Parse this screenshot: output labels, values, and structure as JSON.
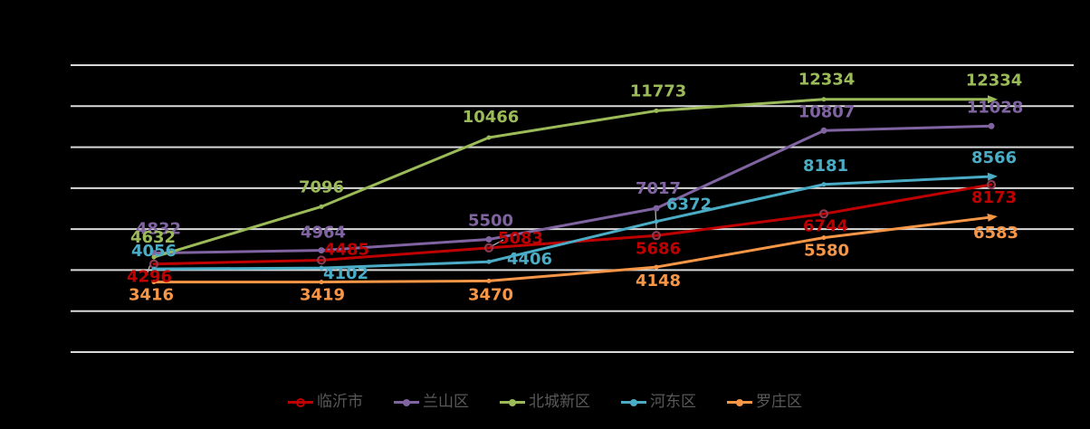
{
  "chart_data": {
    "type": "line",
    "title": "",
    "xlabel": "",
    "ylabel": "",
    "x_point_count": 6,
    "ylim": [
      0,
      14000
    ],
    "grid_step": 2000,
    "grid": true,
    "grid_color": "#D9D9D9",
    "background_color": "#000000",
    "legend_position": "bottom",
    "data_labels_shown": true,
    "series": [
      {
        "name": "临沂市",
        "color": "#C00000",
        "marker": "ring",
        "values": [
          4296,
          4485,
          5083,
          5686,
          6744,
          8173
        ]
      },
      {
        "name": "兰山区",
        "color": "#8064A2",
        "marker": "dot",
        "values": [
          4832,
          4964,
          5500,
          7017,
          10807,
          11028
        ]
      },
      {
        "name": "北城新区",
        "color": "#9BBB59",
        "marker": "arrow",
        "values": [
          4632,
          7096,
          10466,
          11773,
          12334,
          12334
        ]
      },
      {
        "name": "河东区",
        "color": "#4BACC6",
        "marker": "arrow",
        "values": [
          4056,
          4102,
          4406,
          6372,
          8181,
          8566
        ]
      },
      {
        "name": "罗庄区",
        "color": "#F79646",
        "marker": "arrow",
        "values": [
          3416,
          3419,
          3470,
          4148,
          5580,
          6583
        ]
      }
    ],
    "legend_text_color": "#595959"
  }
}
